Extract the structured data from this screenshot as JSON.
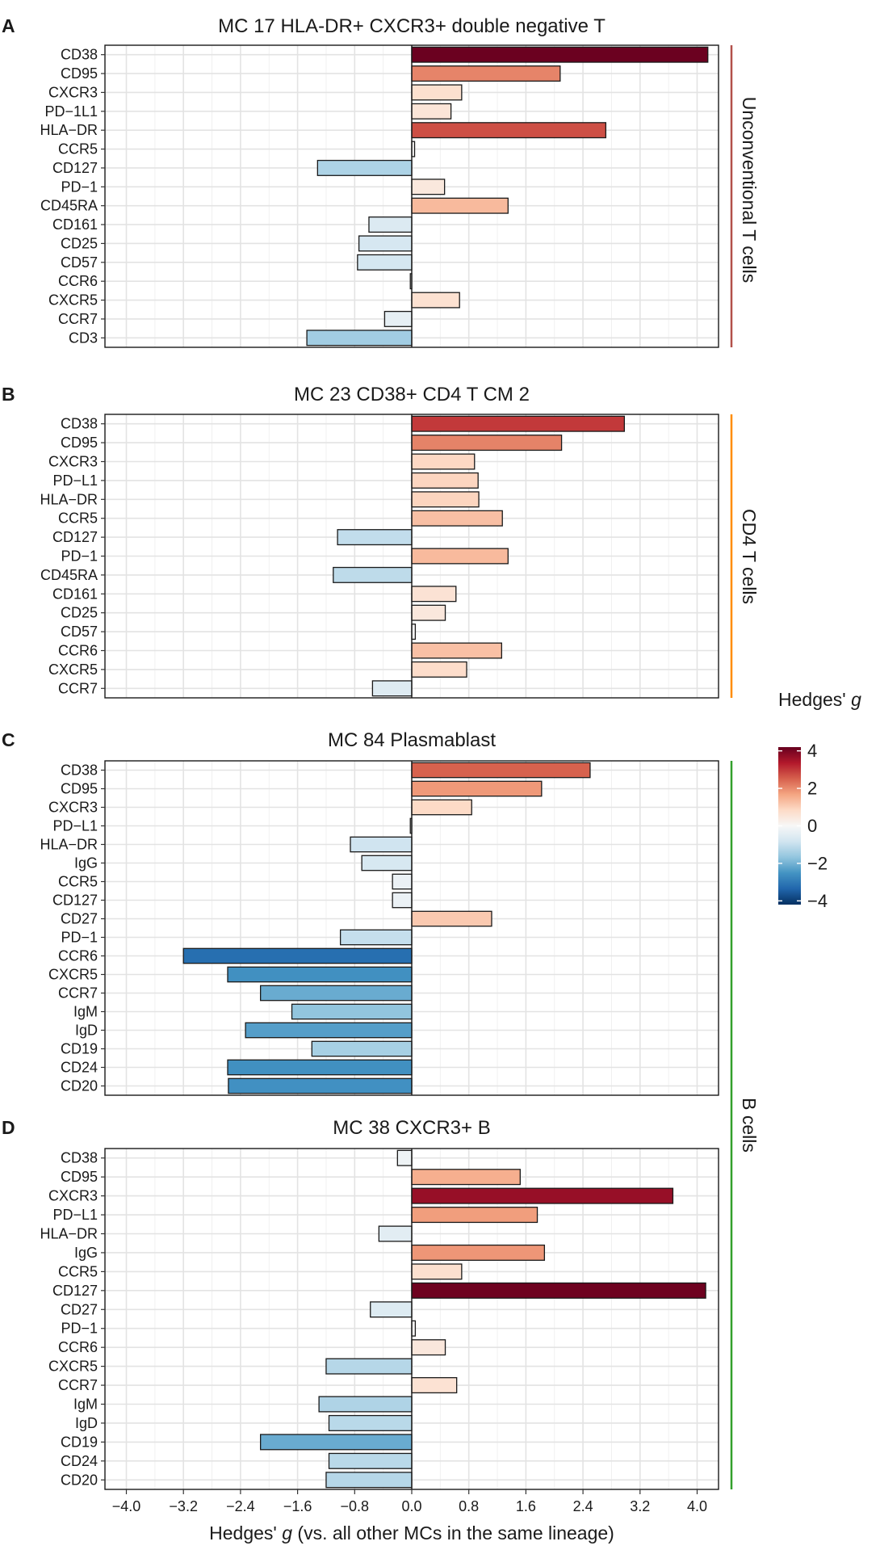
{
  "chart_data": [
    {
      "type": "bar",
      "panel_label": "A",
      "title": "MC 17 HLA-DR+ CXCR3+ double negative T",
      "categories": [
        "CD38",
        "CD95",
        "CXCR3",
        "PD−1L1",
        "HLA−DR",
        "CCR5",
        "CD127",
        "PD−1",
        "CD45RA",
        "CD161",
        "CD25",
        "CD57",
        "CCR6",
        "CXCR5",
        "CCR7",
        "CD3"
      ],
      "values": [
        4.15,
        2.08,
        0.7,
        0.55,
        2.72,
        0.04,
        -1.32,
        0.46,
        1.35,
        -0.6,
        -0.74,
        -0.76,
        -0.02,
        0.67,
        -0.38,
        -1.47
      ]
    },
    {
      "type": "bar",
      "panel_label": "B",
      "title": "MC 23 CD38+ CD4 T CM 2",
      "categories": [
        "CD38",
        "CD95",
        "CXCR3",
        "PD−L1",
        "HLA−DR",
        "CCR5",
        "CD127",
        "PD−1",
        "CD45RA",
        "CD161",
        "CD25",
        "CD57",
        "CCR6",
        "CXCR5",
        "CCR7"
      ],
      "values": [
        2.98,
        2.1,
        0.88,
        0.93,
        0.94,
        1.27,
        -1.04,
        1.35,
        -1.1,
        0.62,
        0.47,
        0.05,
        1.26,
        0.77,
        -0.55
      ]
    },
    {
      "type": "bar",
      "panel_label": "C",
      "title": "MC 84 Plasmablast",
      "categories": [
        "CD38",
        "CD95",
        "CXCR3",
        "PD−L1",
        "HLA−DR",
        "IgG",
        "CCR5",
        "CD127",
        "CD27",
        "PD−1",
        "CCR6",
        "CXCR5",
        "CCR7",
        "IgM",
        "IgD",
        "CD19",
        "CD24",
        "CD20"
      ],
      "values": [
        2.5,
        1.82,
        0.84,
        -0.02,
        -0.86,
        -0.7,
        -0.27,
        -0.27,
        1.12,
        -1.0,
        -3.2,
        -2.58,
        -2.12,
        -1.68,
        -2.33,
        -1.4,
        -2.58,
        -2.57
      ]
    },
    {
      "type": "bar",
      "panel_label": "D",
      "title": "MC 38 CXCR3+ B",
      "categories": [
        "CD38",
        "CD95",
        "CXCR3",
        "PD−L1",
        "HLA−DR",
        "IgG",
        "CCR5",
        "CD127",
        "CD27",
        "PD−1",
        "CCR6",
        "CXCR5",
        "CCR7",
        "IgM",
        "IgD",
        "CD19",
        "CD24",
        "CD20"
      ],
      "values": [
        -0.2,
        1.52,
        3.66,
        1.76,
        -0.46,
        1.86,
        0.7,
        4.12,
        -0.58,
        0.05,
        0.47,
        -1.2,
        0.63,
        -1.3,
        -1.16,
        -2.12,
        -1.16,
        -1.2
      ]
    }
  ],
  "x_axis": {
    "label_prefix": "Hedges' ",
    "label_var": "g",
    "label_suffix": " (vs. all other MCs in the same lineage)",
    "ticks": [
      "−4.0",
      "−3.2",
      "−2.4",
      "−1.6",
      "−0.8",
      "0.0",
      "0.8",
      "1.6",
      "2.4",
      "3.2",
      "4.0"
    ],
    "tick_values": [
      -4.0,
      -3.2,
      -2.4,
      -1.6,
      -0.8,
      0.0,
      0.8,
      1.6,
      2.4,
      3.2,
      4.0
    ],
    "xlim": [
      -4.3,
      4.3
    ]
  },
  "lineages": [
    {
      "label": "Unconventional T cells",
      "color": "#B2504A"
    },
    {
      "label": "CD4 T cells",
      "color": "#FF8C00"
    },
    {
      "label": "B cells",
      "color": "#33A02C"
    }
  ],
  "legend": {
    "title_prefix": "Hedges' ",
    "title_var": "g",
    "ticks": [
      "4",
      "2",
      "0",
      "−2",
      "−4"
    ],
    "tick_values": [
      4,
      2,
      0,
      -2,
      -4
    ],
    "range": [
      -4.2,
      4.2
    ],
    "colors": [
      "#053061",
      "#2166AC",
      "#4393C3",
      "#92C5DE",
      "#D1E5F0",
      "#F7F7F7",
      "#FDDBC7",
      "#F4A582",
      "#D6604D",
      "#B2182B",
      "#67001F"
    ]
  }
}
